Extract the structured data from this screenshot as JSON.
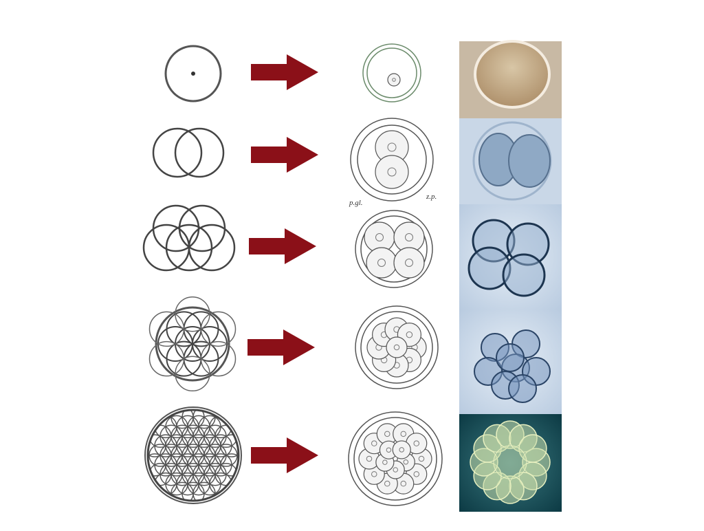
{
  "labels": {
    "polar_globule": "p.gl.",
    "zona_pellucida": "z.p."
  }
}
